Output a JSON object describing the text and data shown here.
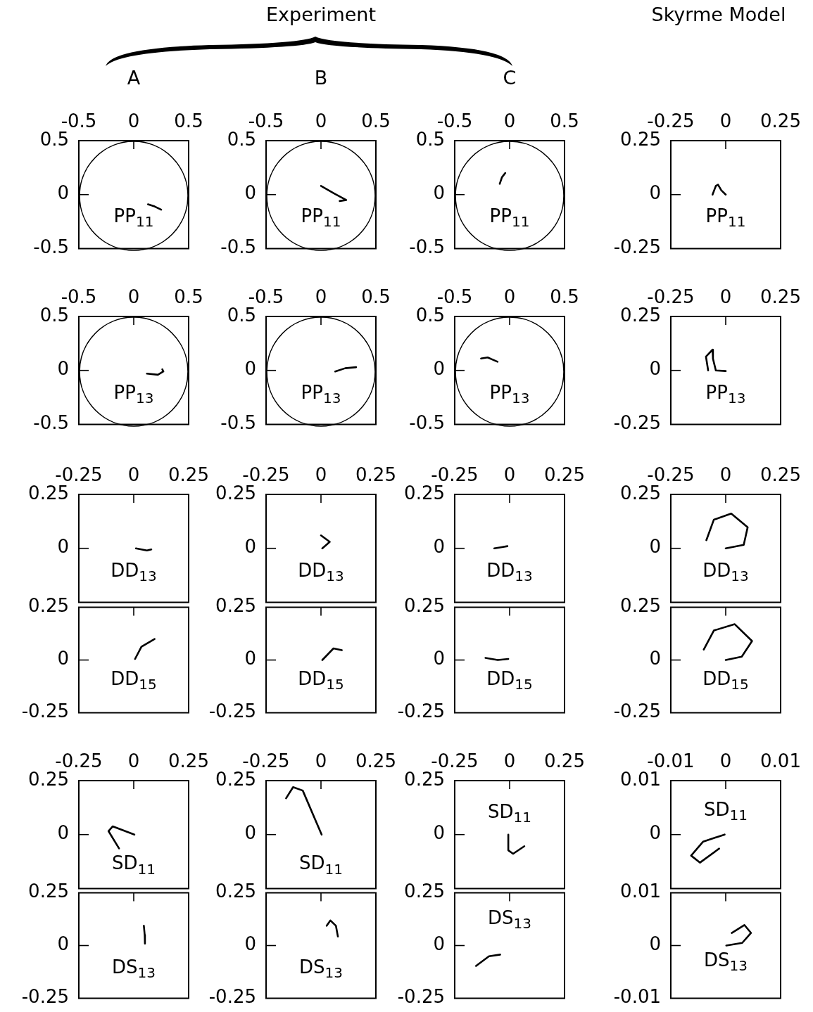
{
  "chart_data": [
    {
      "type": "line",
      "title": "A",
      "annotations": [
        "PP$_{11}$"
      ],
      "xlim": [
        -0.5,
        0.5
      ],
      "ylim": [
        -0.5,
        0.5
      ],
      "xticks": [
        -0.5,
        0,
        0.5
      ],
      "yticks": [
        -0.5,
        0,
        0.5
      ],
      "series": [
        {
          "color": "#000000",
          "x": [
            0.13,
            0.19,
            0.25
          ],
          "values": [
            -0.09,
            -0.11,
            -0.14
          ]
        }
      ]
    },
    {
      "type": "line",
      "title": "B",
      "subtitle": "Experiment",
      "annotations": [
        "PP$_{11}$"
      ],
      "xlim": [
        -0.5,
        0.5
      ],
      "ylim": [
        -0.5,
        0.5
      ],
      "xticks": [
        -0.5,
        0,
        0.5
      ],
      "yticks": [
        -0.5,
        0,
        0.5
      ],
      "series": [
        {
          "color": "#000000",
          "x": [
            0,
            0.12,
            0.23,
            0.17
          ],
          "values": [
            0.08,
            0.01,
            -0.05,
            -0.06
          ]
        }
      ]
    },
    {
      "type": "line",
      "title": "C",
      "annotations": [
        "PP$_{11}$"
      ],
      "xlim": [
        -0.5,
        0.5
      ],
      "ylim": [
        -0.5,
        0.5
      ],
      "xticks": [
        -0.5,
        0,
        0.5
      ],
      "yticks": [
        -0.5,
        0,
        0.5
      ],
      "series": [
        {
          "color": "#000000",
          "x": [
            -0.04,
            -0.07,
            -0.09
          ],
          "values": [
            0.2,
            0.16,
            0.1
          ]
        }
      ]
    },
    {
      "type": "line",
      "title": "Skyrme Model",
      "annotations": [
        "PP$_{11}$"
      ],
      "xlim": [
        -0.25,
        0.25
      ],
      "ylim": [
        -0.25,
        0.25
      ],
      "xticks": [
        -0.25,
        0,
        0.25
      ],
      "yticks": [
        -0.25,
        0,
        0.25
      ],
      "series": [
        {
          "color": "#000000",
          "x": [
            -0.06,
            -0.045,
            -0.035,
            -0.02,
            0
          ],
          "values": [
            0,
            0.04,
            0.046,
            0.02,
            0
          ]
        }
      ]
    },
    {
      "type": "line",
      "annotations": [
        "PP$_{13}$"
      ],
      "xlim": [
        -0.5,
        0.5
      ],
      "ylim": [
        -0.5,
        0.5
      ],
      "xticks": [
        -0.5,
        0,
        0.5
      ],
      "yticks": [
        -0.5,
        0,
        0.5
      ],
      "series": [
        {
          "color": "#000000",
          "x": [
            0.12,
            0.22,
            0.27,
            0.26
          ],
          "values": [
            -0.03,
            -0.04,
            -0.01,
            0.01
          ]
        }
      ]
    },
    {
      "type": "line",
      "annotations": [
        "PP$_{13}$"
      ],
      "xlim": [
        -0.5,
        0.5
      ],
      "ylim": [
        -0.5,
        0.5
      ],
      "xticks": [
        -0.5,
        0,
        0.5
      ],
      "yticks": [
        -0.5,
        0,
        0.5
      ],
      "series": [
        {
          "color": "#000000",
          "x": [
            0.13,
            0.22,
            0.32
          ],
          "values": [
            -0.01,
            0.02,
            0.03
          ]
        }
      ]
    },
    {
      "type": "line",
      "annotations": [
        "PP$_{13}$"
      ],
      "xlim": [
        -0.5,
        0.5
      ],
      "ylim": [
        -0.5,
        0.5
      ],
      "xticks": [
        -0.5,
        0,
        0.5
      ],
      "yticks": [
        -0.5,
        0,
        0.5
      ],
      "series": [
        {
          "color": "#000000",
          "x": [
            -0.26,
            -0.2,
            -0.11
          ],
          "values": [
            0.11,
            0.12,
            0.08
          ]
        }
      ]
    },
    {
      "type": "line",
      "annotations": [
        "PP$_{13}$"
      ],
      "xlim": [
        -0.25,
        0.25
      ],
      "ylim": [
        -0.25,
        0.25
      ],
      "xticks": [
        -0.25,
        0,
        0.25
      ],
      "yticks": [
        -0.25,
        0,
        0.25
      ],
      "series": [
        {
          "color": "#000000",
          "x": [
            -0.08,
            -0.09,
            -0.06,
            -0.058,
            -0.045,
            0
          ],
          "values": [
            0,
            0.064,
            0.096,
            0.054,
            0,
            -0.003
          ]
        }
      ]
    },
    {
      "type": "line",
      "annotations": [
        "DD$_{13}$"
      ],
      "xlim": [
        -0.25,
        0.25
      ],
      "ylim": [
        -0.25,
        0.25
      ],
      "xticks": [
        -0.25,
        0,
        0.25
      ],
      "yticks": [
        0,
        0.25
      ],
      "series": [
        {
          "color": "#000000",
          "x": [
            0.01,
            0.06,
            0.08
          ],
          "values": [
            0,
            -0.01,
            -0.005
          ]
        }
      ]
    },
    {
      "type": "line",
      "annotations": [
        "DD$_{13}$"
      ],
      "xlim": [
        -0.25,
        0.25
      ],
      "ylim": [
        -0.25,
        0.25
      ],
      "xticks": [
        -0.25,
        0,
        0.25
      ],
      "yticks": [
        0,
        0.25
      ],
      "series": [
        {
          "color": "#000000",
          "x": [
            0,
            0.04,
            0.006
          ],
          "values": [
            0.06,
            0.03,
            0
          ]
        }
      ]
    },
    {
      "type": "line",
      "annotations": [
        "DD$_{13}$"
      ],
      "xlim": [
        -0.25,
        0.25
      ],
      "ylim": [
        -0.25,
        0.25
      ],
      "xticks": [
        -0.25,
        0,
        0.25
      ],
      "yticks": [
        0,
        0.25
      ],
      "series": [
        {
          "color": "#000000",
          "x": [
            -0.07,
            -0.04,
            -0.01
          ],
          "values": [
            0,
            0.005,
            0.01
          ]
        }
      ]
    },
    {
      "type": "line",
      "annotations": [
        "DD$_{13}$"
      ],
      "xlim": [
        -0.25,
        0.25
      ],
      "ylim": [
        -0.25,
        0.25
      ],
      "xticks": [
        -0.25,
        0,
        0.25
      ],
      "yticks": [
        0,
        0.25
      ],
      "series": [
        {
          "color": "#000000",
          "x": [
            -0.088,
            -0.054,
            0.025,
            0.1,
            0.082,
            0
          ],
          "values": [
            0.038,
            0.133,
            0.161,
            0.098,
            0.016,
            0
          ]
        }
      ]
    },
    {
      "type": "line",
      "annotations": [
        "DD$_{15}$"
      ],
      "tick_labels": "y",
      "xlim": [
        -0.25,
        0.25
      ],
      "ylim": [
        -0.25,
        0.25
      ],
      "xticks": [
        -0.25,
        0,
        0.25
      ],
      "yticks": [
        -0.25,
        0,
        0.25
      ],
      "series": [
        {
          "color": "#000000",
          "x": [
            0.006,
            0.035,
            0.095
          ],
          "values": [
            0.005,
            0.063,
            0.1
          ]
        }
      ]
    },
    {
      "type": "line",
      "annotations": [
        "DD$_{15}$"
      ],
      "tick_labels": "y",
      "xlim": [
        -0.25,
        0.25
      ],
      "ylim": [
        -0.25,
        0.25
      ],
      "xticks": [
        -0.25,
        0,
        0.25
      ],
      "yticks": [
        -0.25,
        0,
        0.25
      ],
      "series": [
        {
          "color": "#000000",
          "x": [
            0.006,
            0.057,
            0.095
          ],
          "values": [
            0,
            0.055,
            0.047
          ]
        }
      ]
    },
    {
      "type": "line",
      "annotations": [
        "DD$_{15}$"
      ],
      "tick_labels": "y",
      "xlim": [
        -0.25,
        0.25
      ],
      "ylim": [
        -0.25,
        0.25
      ],
      "xticks": [
        -0.25,
        0,
        0.25
      ],
      "yticks": [
        -0.25,
        0,
        0.25
      ],
      "series": [
        {
          "color": "#000000",
          "x": [
            -0.11,
            -0.054,
            -0.006
          ],
          "values": [
            0.01,
            0,
            0.005
          ]
        }
      ]
    },
    {
      "type": "line",
      "annotations": [
        "DD$_{15}$"
      ],
      "tick_labels": "y",
      "xlim": [
        -0.25,
        0.25
      ],
      "ylim": [
        -0.25,
        0.25
      ],
      "xticks": [
        -0.25,
        0,
        0.25
      ],
      "yticks": [
        -0.25,
        0,
        0.25
      ],
      "series": [
        {
          "color": "#000000",
          "x": [
            -0.1,
            -0.054,
            0.041,
            0.12,
            0.073,
            0
          ],
          "values": [
            0.05,
            0.14,
            0.17,
            0.09,
            0.016,
            0
          ]
        }
      ]
    },
    {
      "type": "line",
      "annotations": [
        "SD$_{11}$"
      ],
      "xlim": [
        -0.25,
        0.25
      ],
      "ylim": [
        -0.25,
        0.25
      ],
      "xticks": [
        -0.25,
        0,
        0.25
      ],
      "yticks": [
        0,
        0.25
      ],
      "series": [
        {
          "color": "#000000",
          "x": [
            -0.067,
            -0.115,
            -0.096,
            0.003
          ],
          "values": [
            -0.064,
            0.016,
            0.038,
            0
          ]
        }
      ]
    },
    {
      "type": "line",
      "annotations": [
        "SD$_{11}$"
      ],
      "xlim": [
        -0.25,
        0.25
      ],
      "ylim": [
        -0.25,
        0.25
      ],
      "xticks": [
        -0.25,
        0,
        0.25
      ],
      "yticks": [
        0,
        0.25
      ],
      "series": [
        {
          "color": "#000000",
          "x": [
            -0.159,
            -0.127,
            -0.083,
            0.003
          ],
          "values": [
            0.168,
            0.22,
            0.204,
            0
          ]
        }
      ]
    },
    {
      "type": "line",
      "annotations": [
        "SD$_{11}$"
      ],
      "xlim": [
        -0.25,
        0.25
      ],
      "ylim": [
        -0.25,
        0.25
      ],
      "xticks": [
        -0.25,
        0,
        0.25
      ],
      "yticks": [
        0,
        0.25
      ],
      "series": [
        {
          "color": "#000000",
          "x": [
            -0.006,
            -0.006,
            0.016,
            0.067
          ],
          "values": [
            0,
            -0.073,
            -0.089,
            -0.054
          ]
        }
      ]
    },
    {
      "type": "line",
      "annotations": [
        "SD$_{11}$"
      ],
      "xlim": [
        -0.01,
        0.01
      ],
      "ylim": [
        -0.01,
        0.01
      ],
      "xticks": [
        -0.01,
        0,
        0.01
      ],
      "yticks": [
        0,
        0.01
      ],
      "series": [
        {
          "color": "#000000",
          "x": [
            -0.0002,
            -0.0041,
            -0.0063,
            -0.0047,
            -0.0012
          ],
          "values": [
            0,
            -0.0013,
            -0.0039,
            -0.0052,
            -0.0026
          ]
        }
      ]
    },
    {
      "type": "line",
      "annotations": [
        "DS$_{13}$"
      ],
      "tick_labels": "y",
      "xlim": [
        -0.25,
        0.25
      ],
      "ylim": [
        -0.25,
        0.25
      ],
      "xticks": [
        -0.25,
        0,
        0.25
      ],
      "yticks": [
        -0.25,
        0,
        0.25
      ],
      "series": [
        {
          "color": "#000000",
          "x": [
            0.046,
            0.05,
            0.051
          ],
          "values": [
            0.094,
            0.05,
            0.009
          ]
        }
      ]
    },
    {
      "type": "line",
      "annotations": [
        "DS$_{13}$"
      ],
      "tick_labels": "y",
      "xlim": [
        -0.25,
        0.25
      ],
      "ylim": [
        -0.25,
        0.25
      ],
      "xticks": [
        -0.25,
        0,
        0.25
      ],
      "yticks": [
        -0.25,
        0,
        0.25
      ],
      "series": [
        {
          "color": "#000000",
          "x": [
            0.026,
            0.043,
            0.068,
            0.077
          ],
          "values": [
            0.094,
            0.119,
            0.094,
            0.043
          ]
        }
      ]
    },
    {
      "type": "line",
      "annotations": [
        "DS$_{13}$"
      ],
      "tick_labels": "y",
      "xlim": [
        -0.25,
        0.25
      ],
      "ylim": [
        -0.25,
        0.25
      ],
      "xticks": [
        -0.25,
        0,
        0.25
      ],
      "yticks": [
        -0.25,
        0,
        0.25
      ],
      "series": [
        {
          "color": "#000000",
          "x": [
            -0.153,
            -0.094,
            -0.043
          ],
          "values": [
            -0.097,
            -0.051,
            -0.043
          ]
        }
      ]
    },
    {
      "type": "line",
      "annotations": [
        "DS$_{13}$"
      ],
      "tick_labels": "y",
      "xlim": [
        -0.01,
        0.01
      ],
      "ylim": [
        -0.01,
        0.01
      ],
      "xticks": [
        -0.01,
        0,
        0.01
      ],
      "yticks": [
        -0.01,
        0,
        0.01
      ],
      "series": [
        {
          "color": "#000000",
          "x": [
            0.0001,
            0.003,
            0.0046,
            0.0034,
            0.0011
          ],
          "values": [
            0,
            0.0005,
            0.0024,
            0.0039,
            0.0024
          ]
        }
      ]
    }
  ]
}
